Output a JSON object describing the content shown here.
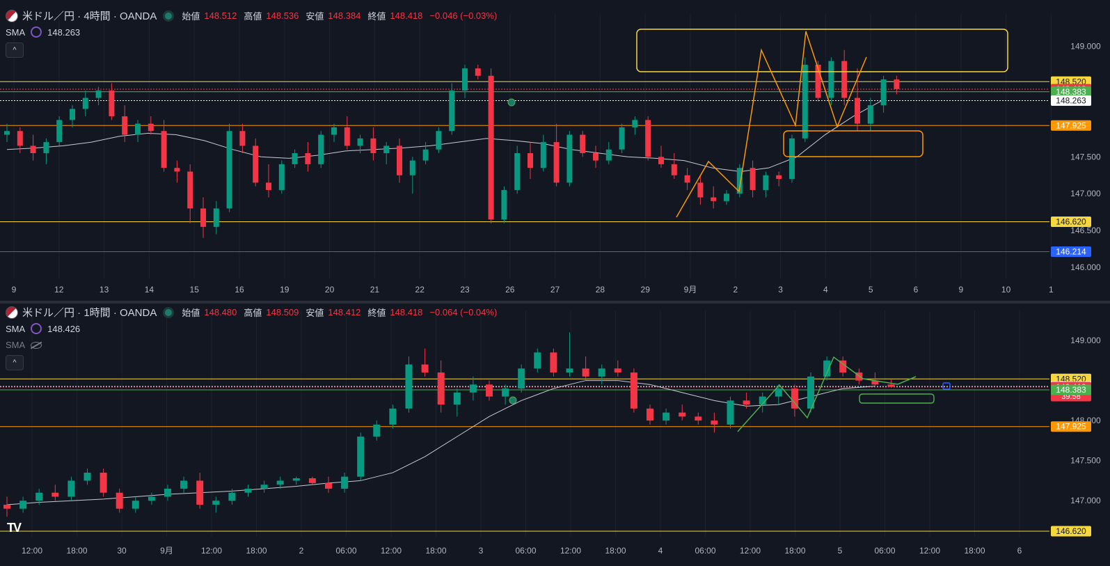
{
  "colors": {
    "bg": "#131722",
    "grid": "#1e2230",
    "up": "#089981",
    "down": "#f23645",
    "sma": "#c8cbd3",
    "axis_text": "#b2b5be"
  },
  "top": {
    "title": "米ドル／円 · 4時間 · OANDA",
    "ohlc": [
      {
        "label": "始値",
        "value": "148.512"
      },
      {
        "label": "高値",
        "value": "148.536"
      },
      {
        "label": "安値",
        "value": "148.384"
      },
      {
        "label": "終値",
        "value": "148.418"
      }
    ],
    "change": "−0.046 (−0.03%)",
    "sma_label": "SMA",
    "sma_value": "148.263",
    "collapse_label": "^"
  },
  "bottom": {
    "title": "米ドル／円 · 1時間 · OANDA",
    "ohlc": [
      {
        "label": "始値",
        "value": "148.480"
      },
      {
        "label": "高値",
        "value": "148.509"
      },
      {
        "label": "安値",
        "value": "148.412"
      },
      {
        "label": "終値",
        "value": "148.418"
      }
    ],
    "change": "−0.064 (−0.04%)",
    "sma_label": "SMA",
    "sma_value": "148.426",
    "sma2_label": "SMA",
    "collapse_label": "^"
  },
  "chart_data": [
    {
      "type": "candlestick",
      "title": "米ドル／円 · 4時間 · OANDA",
      "ylim": [
        145.85,
        149.25
      ],
      "y_ticks": [
        "149.000",
        "147.500",
        "147.000",
        "146.500",
        "146.000"
      ],
      "x_ticks": [
        "9",
        "12",
        "13",
        "14",
        "15",
        "16",
        "19",
        "20",
        "21",
        "22",
        "23",
        "26",
        "27",
        "28",
        "29",
        "9月",
        "2",
        "3",
        "4",
        "5",
        "6",
        "9",
        "10",
        "1"
      ],
      "candles": [
        [
          147.8,
          147.95,
          147.7,
          147.85
        ],
        [
          147.85,
          147.9,
          147.55,
          147.65
        ],
        [
          147.65,
          147.8,
          147.45,
          147.55
        ],
        [
          147.55,
          147.75,
          147.4,
          147.7
        ],
        [
          147.7,
          148.05,
          147.65,
          148.0
        ],
        [
          148.0,
          148.2,
          147.9,
          148.15
        ],
        [
          148.15,
          148.4,
          148.05,
          148.3
        ],
        [
          148.3,
          148.45,
          148.2,
          148.4
        ],
        [
          148.4,
          148.5,
          148.0,
          148.05
        ],
        [
          148.05,
          148.2,
          147.7,
          147.8
        ],
        [
          147.8,
          148.0,
          147.7,
          147.95
        ],
        [
          147.95,
          148.05,
          147.8,
          147.85
        ],
        [
          147.85,
          148.0,
          147.3,
          147.35
        ],
        [
          147.35,
          147.45,
          147.15,
          147.3
        ],
        [
          147.3,
          147.4,
          146.6,
          146.8
        ],
        [
          146.8,
          146.95,
          146.4,
          146.55
        ],
        [
          146.55,
          146.9,
          146.45,
          146.8
        ],
        [
          146.8,
          147.95,
          146.75,
          147.85
        ],
        [
          147.85,
          147.95,
          147.55,
          147.65
        ],
        [
          147.65,
          147.75,
          147.1,
          147.15
        ],
        [
          147.15,
          147.4,
          146.95,
          147.05
        ],
        [
          147.05,
          147.45,
          147.0,
          147.4
        ],
        [
          147.4,
          147.6,
          147.35,
          147.55
        ],
        [
          147.55,
          147.7,
          147.3,
          147.4
        ],
        [
          147.4,
          147.85,
          147.35,
          147.8
        ],
        [
          147.8,
          147.95,
          147.7,
          147.9
        ],
        [
          147.9,
          148.05,
          147.6,
          147.65
        ],
        [
          147.65,
          147.8,
          147.55,
          147.75
        ],
        [
          147.75,
          147.9,
          147.45,
          147.55
        ],
        [
          147.55,
          147.7,
          147.4,
          147.65
        ],
        [
          147.65,
          147.75,
          147.15,
          147.25
        ],
        [
          147.25,
          147.5,
          147.0,
          147.45
        ],
        [
          147.45,
          147.7,
          147.4,
          147.6
        ],
        [
          147.6,
          147.9,
          147.55,
          147.85
        ],
        [
          147.85,
          148.5,
          147.8,
          148.4
        ],
        [
          148.4,
          148.75,
          148.3,
          148.7
        ],
        [
          148.7,
          148.75,
          148.55,
          148.6
        ],
        [
          148.6,
          148.7,
          146.6,
          146.65
        ],
        [
          146.65,
          147.1,
          146.6,
          147.05
        ],
        [
          147.05,
          147.65,
          147.0,
          147.55
        ],
        [
          147.55,
          147.7,
          147.2,
          147.35
        ],
        [
          147.35,
          147.8,
          147.3,
          147.7
        ],
        [
          147.7,
          147.95,
          147.1,
          147.15
        ],
        [
          147.15,
          147.85,
          147.1,
          147.8
        ],
        [
          147.8,
          147.85,
          147.5,
          147.55
        ],
        [
          147.55,
          147.65,
          147.35,
          147.45
        ],
        [
          147.45,
          147.7,
          147.4,
          147.6
        ],
        [
          147.6,
          147.95,
          147.55,
          147.9
        ],
        [
          147.9,
          148.05,
          147.8,
          148.0
        ],
        [
          148.0,
          148.05,
          147.45,
          147.5
        ],
        [
          147.5,
          147.65,
          147.35,
          147.4
        ],
        [
          147.4,
          147.55,
          147.2,
          147.25
        ],
        [
          147.25,
          147.35,
          147.05,
          147.15
        ],
        [
          147.15,
          147.25,
          146.85,
          146.95
        ],
        [
          146.95,
          147.1,
          146.8,
          146.9
        ],
        [
          146.9,
          147.05,
          146.85,
          147.0
        ],
        [
          147.0,
          147.4,
          146.95,
          147.35
        ],
        [
          147.35,
          147.45,
          146.95,
          147.05
        ],
        [
          147.05,
          147.3,
          146.95,
          147.25
        ],
        [
          147.25,
          147.3,
          147.1,
          147.2
        ],
        [
          147.2,
          147.8,
          147.15,
          147.75
        ],
        [
          147.75,
          148.85,
          147.7,
          148.75
        ],
        [
          148.75,
          148.8,
          148.25,
          148.3
        ],
        [
          148.3,
          148.85,
          148.2,
          148.8
        ],
        [
          148.8,
          148.95,
          148.2,
          148.3
        ],
        [
          148.3,
          148.7,
          147.85,
          147.95
        ],
        [
          147.95,
          148.3,
          147.85,
          148.2
        ],
        [
          148.2,
          148.6,
          148.1,
          148.55
        ],
        [
          148.55,
          148.6,
          148.35,
          148.42
        ]
      ],
      "sma": [
        147.6,
        147.62,
        147.65,
        147.7,
        147.78,
        147.82,
        147.8,
        147.72,
        147.6,
        147.5,
        147.48,
        147.52,
        147.58,
        147.6,
        147.62,
        147.65,
        147.7,
        147.75,
        147.72,
        147.68,
        147.6,
        147.55,
        147.5,
        147.48,
        147.45,
        147.35,
        147.3,
        147.35,
        147.5,
        147.8,
        148.05,
        148.26
      ],
      "h_lines": [
        {
          "price": 148.52,
          "color": "#f7d83c",
          "label": "148.520"
        },
        {
          "price": 148.418,
          "color": "#f23645",
          "label": "148.418",
          "sub": "01:39:57"
        },
        {
          "price": 148.383,
          "color": "#4caf50",
          "label": "148.383"
        },
        {
          "price": 148.263,
          "color": "#ffffff",
          "label": "148.263"
        },
        {
          "price": 147.925,
          "color": "#ff9800",
          "label": "147.925"
        },
        {
          "price": 146.62,
          "color": "#f7d83c",
          "label": "146.620"
        },
        {
          "price": 146.214,
          "color": "#2962ff",
          "label": "146.214"
        }
      ]
    },
    {
      "type": "candlestick",
      "title": "米ドル／円 · 1時間 · OANDA",
      "ylim": [
        146.55,
        149.2
      ],
      "y_ticks": [
        "149.000",
        "148.000",
        "147.500",
        "147.000"
      ],
      "x_ticks": [
        "12:00",
        "18:00",
        "30",
        "9月",
        "12:00",
        "18:00",
        "2",
        "06:00",
        "12:00",
        "18:00",
        "3",
        "06:00",
        "12:00",
        "18:00",
        "4",
        "06:00",
        "12:00",
        "18:00",
        "5",
        "06:00",
        "12:00",
        "18:00",
        "6"
      ],
      "candles": [
        [
          146.95,
          147.05,
          146.8,
          146.9
        ],
        [
          146.9,
          147.05,
          146.85,
          147.0
        ],
        [
          147.0,
          147.15,
          146.95,
          147.1
        ],
        [
          147.1,
          147.2,
          147.0,
          147.05
        ],
        [
          147.05,
          147.3,
          147.0,
          147.25
        ],
        [
          147.25,
          147.4,
          147.2,
          147.35
        ],
        [
          147.35,
          147.4,
          147.05,
          147.1
        ],
        [
          147.1,
          147.15,
          146.85,
          146.9
        ],
        [
          146.9,
          147.05,
          146.85,
          147.0
        ],
        [
          147.0,
          147.1,
          146.95,
          147.05
        ],
        [
          147.05,
          147.2,
          147.0,
          147.15
        ],
        [
          147.15,
          147.3,
          147.1,
          147.25
        ],
        [
          147.25,
          147.35,
          146.9,
          146.95
        ],
        [
          146.95,
          147.05,
          146.85,
          147.0
        ],
        [
          147.0,
          147.15,
          146.95,
          147.1
        ],
        [
          147.1,
          147.2,
          147.05,
          147.15
        ],
        [
          147.15,
          147.25,
          147.1,
          147.2
        ],
        [
          147.2,
          147.3,
          147.15,
          147.25
        ],
        [
          147.25,
          147.3,
          147.2,
          147.28
        ],
        [
          147.28,
          147.3,
          147.2,
          147.22
        ],
        [
          147.22,
          147.3,
          147.1,
          147.15
        ],
        [
          147.15,
          147.35,
          147.1,
          147.3
        ],
        [
          147.3,
          147.85,
          147.25,
          147.8
        ],
        [
          147.8,
          148.0,
          147.75,
          147.95
        ],
        [
          147.95,
          148.2,
          147.9,
          148.15
        ],
        [
          148.15,
          148.8,
          148.1,
          148.7
        ],
        [
          148.7,
          148.9,
          148.55,
          148.6
        ],
        [
          148.6,
          148.75,
          148.1,
          148.2
        ],
        [
          148.2,
          148.4,
          148.05,
          148.35
        ],
        [
          148.35,
          148.55,
          148.25,
          148.45
        ],
        [
          148.45,
          148.5,
          148.25,
          148.3
        ],
        [
          148.3,
          148.45,
          148.2,
          148.4
        ],
        [
          148.4,
          148.7,
          148.35,
          148.65
        ],
        [
          148.65,
          148.9,
          148.6,
          148.85
        ],
        [
          148.85,
          148.9,
          148.55,
          148.6
        ],
        [
          148.6,
          149.1,
          148.55,
          148.65
        ],
        [
          148.65,
          148.8,
          148.5,
          148.55
        ],
        [
          148.55,
          148.7,
          148.45,
          148.65
        ],
        [
          148.65,
          148.75,
          148.55,
          148.6
        ],
        [
          148.6,
          148.65,
          148.1,
          148.15
        ],
        [
          148.15,
          148.2,
          147.95,
          148.0
        ],
        [
          148.0,
          148.15,
          147.95,
          148.1
        ],
        [
          148.1,
          148.2,
          148.0,
          148.05
        ],
        [
          148.05,
          148.1,
          147.95,
          148.0
        ],
        [
          148.0,
          148.1,
          147.85,
          147.95
        ],
        [
          147.95,
          148.3,
          147.9,
          148.25
        ],
        [
          148.25,
          148.35,
          148.15,
          148.2
        ],
        [
          148.2,
          148.35,
          148.1,
          148.3
        ],
        [
          148.3,
          148.45,
          148.2,
          148.4
        ],
        [
          148.4,
          148.45,
          148.05,
          148.15
        ],
        [
          148.15,
          148.6,
          148.1,
          148.55
        ],
        [
          148.55,
          148.8,
          148.5,
          148.75
        ],
        [
          148.75,
          148.8,
          148.55,
          148.6
        ],
        [
          148.6,
          148.65,
          148.45,
          148.5
        ],
        [
          148.5,
          148.6,
          148.42,
          148.45
        ],
        [
          148.45,
          148.51,
          148.41,
          148.42
        ]
      ],
      "sma": [
        146.95,
        146.98,
        147.0,
        147.02,
        147.05,
        147.08,
        147.1,
        147.12,
        147.15,
        147.18,
        147.22,
        147.25,
        147.35,
        147.55,
        147.8,
        148.05,
        148.25,
        148.4,
        148.5,
        148.5,
        148.45,
        148.35,
        148.25,
        148.18,
        148.2,
        148.3,
        148.4,
        148.43
      ],
      "h_lines": [
        {
          "price": 148.52,
          "color": "#f7d83c",
          "label": "148.520"
        },
        {
          "price": 148.426,
          "color": "#ffffff",
          "label": "148.426"
        },
        {
          "price": 148.418,
          "color": "#f23645",
          "label": "148.418",
          "sub": "39:58"
        },
        {
          "price": 148.383,
          "color": "#4caf50",
          "label": "148.383"
        },
        {
          "price": 147.925,
          "color": "#ff9800",
          "label": "147.925"
        },
        {
          "price": 146.62,
          "color": "#f7d83c",
          "label": "146.620"
        }
      ]
    }
  ]
}
